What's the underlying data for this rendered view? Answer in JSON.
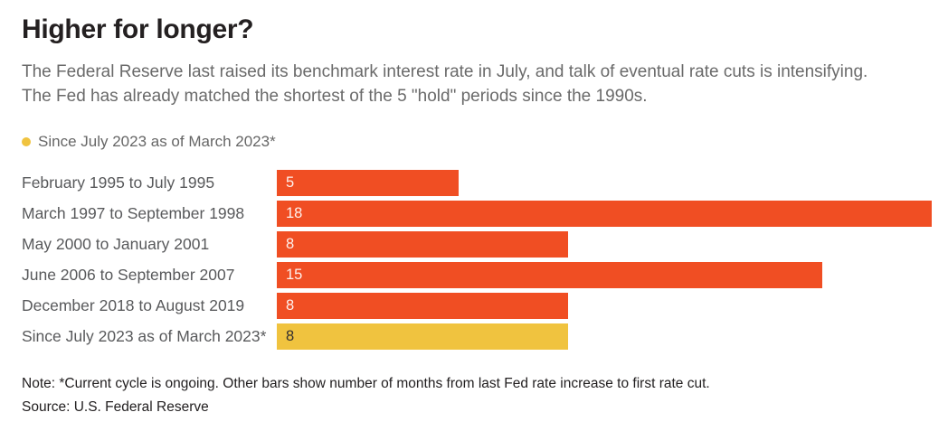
{
  "header": {
    "title": "Higher for longer?",
    "subtitle_line1": "The Federal Reserve last raised its benchmark interest rate in July, and talk of eventual rate cuts is intensifying.",
    "subtitle_line2": "The Fed has already matched the shortest of the 5 \"hold\" periods since the 1990s."
  },
  "legend": {
    "label": "Since July 2023 as of March 2023*",
    "color": "#F0C33F"
  },
  "chart_data": {
    "type": "bar",
    "orientation": "horizontal",
    "title": "Higher for longer?",
    "categories": [
      "February 1995 to July 1995",
      "March 1997 to September 1998",
      "May 2000 to January 2001",
      "June 2006 to September 2007",
      "December 2018 to August 2019",
      "Since July 2023 as of March 2023*"
    ],
    "values": [
      5,
      18,
      8,
      15,
      8,
      8
    ],
    "unit": "months",
    "xlim": [
      0,
      18
    ],
    "grid": false,
    "value_labels_inside_bars": true,
    "highlight_index": 5,
    "bar_color": "#F04E23",
    "highlight_color": "#F0C33F"
  },
  "footer": {
    "note": "Note: *Current cycle is ongoing. Other bars show number of months from last Fed rate increase to first rate cut.",
    "source": "Source: U.S. Federal Reserve"
  }
}
